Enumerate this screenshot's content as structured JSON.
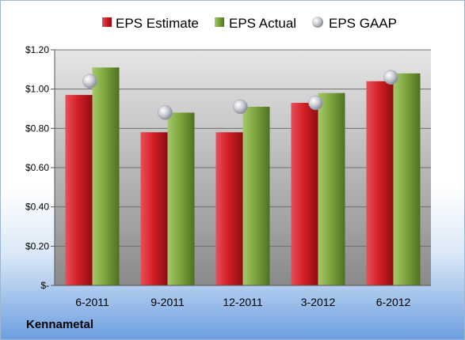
{
  "company": "Kennametal",
  "colors": {
    "estimate": "#c8161d",
    "actual": "#78a33a",
    "gaap": "#b9bcc4"
  },
  "chart_data": {
    "type": "bar",
    "categories": [
      "6-2011",
      "9-2011",
      "12-2011",
      "3-2012",
      "6-2012"
    ],
    "series": [
      {
        "name": "EPS Estimate",
        "values": [
          0.97,
          0.78,
          0.78,
          0.93,
          1.04
        ]
      },
      {
        "name": "EPS Actual",
        "values": [
          1.11,
          0.88,
          0.91,
          0.98,
          1.08
        ]
      },
      {
        "name": "EPS GAAP",
        "values": [
          1.04,
          0.88,
          0.91,
          0.93,
          1.06
        ],
        "marker": "circle"
      }
    ],
    "yticks": [
      "$-",
      "$0.20",
      "$0.40",
      "$0.60",
      "$0.80",
      "$1.00",
      "$1.20"
    ],
    "ylim": [
      0,
      1.2
    ],
    "grid": true,
    "legend": "top"
  }
}
